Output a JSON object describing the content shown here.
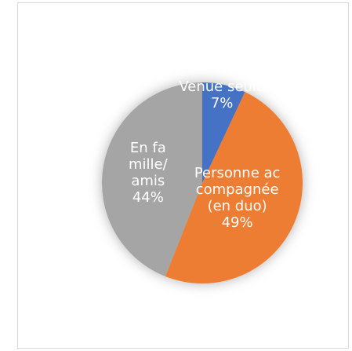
{
  "chart_data": {
    "type": "pie",
    "categories": [
      "Venue seule",
      "Personne accompagnée (en duo)",
      "En famille/amis"
    ],
    "values": [
      7,
      49,
      44
    ],
    "value_labels": [
      "7%",
      "49%",
      "44%"
    ],
    "colors": [
      "#4472c4",
      "#ed7d31",
      "#a5a5a5"
    ]
  }
}
